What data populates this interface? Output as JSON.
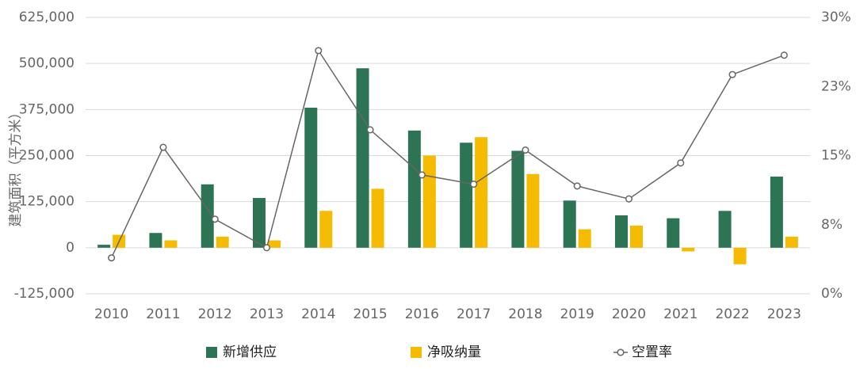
{
  "chart_data": {
    "type": "bar",
    "title": "",
    "ylabel": "建筑面积（平方米）",
    "y2label": "",
    "categories": [
      "2010",
      "2011",
      "2012",
      "2013",
      "2014",
      "2015",
      "2016",
      "2017",
      "2018",
      "2019",
      "2020",
      "2021",
      "2022",
      "2023"
    ],
    "ylim": [
      -125000,
      625000
    ],
    "yticks": [
      -125000,
      0,
      125000,
      250000,
      375000,
      500000,
      625000
    ],
    "ytick_labels": [
      "-125,000",
      "0",
      "125,000",
      "250,000",
      "375,000",
      "500,000",
      "625,000"
    ],
    "y2lim": [
      0,
      30
    ],
    "y2ticks": [
      0,
      7.5,
      15,
      22.5,
      30
    ],
    "y2tick_labels": [
      "0%",
      "8%",
      "15%",
      "23%",
      "30%"
    ],
    "grid": true,
    "legend_position": "bottom",
    "series": [
      {
        "name": "新增供应",
        "kind": "bar",
        "color": "#2d7455",
        "values": [
          8000,
          40000,
          172000,
          135000,
          380000,
          487000,
          318000,
          285000,
          263000,
          128000,
          88000,
          80000,
          100000,
          193000
        ]
      },
      {
        "name": "净吸纳量",
        "kind": "bar",
        "color": "#f5bb00",
        "values": [
          35000,
          20000,
          30000,
          20000,
          100000,
          160000,
          250000,
          300000,
          200000,
          50000,
          60000,
          -10000,
          -45000,
          30000
        ]
      },
      {
        "name": "空置率",
        "kind": "line",
        "axis": "right",
        "color": "#666666",
        "values": [
          3.9,
          15.9,
          8.1,
          5.0,
          26.4,
          17.8,
          12.9,
          11.9,
          15.6,
          11.7,
          10.3,
          14.2,
          23.8,
          25.9
        ]
      }
    ]
  }
}
